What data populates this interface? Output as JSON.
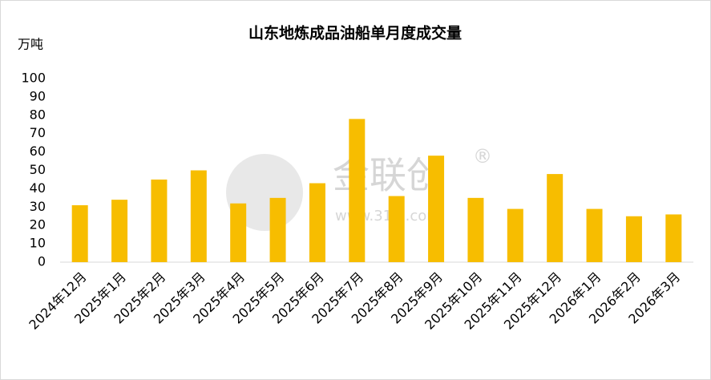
{
  "chart_data": {
    "type": "bar",
    "title": "山东地炼成品油船单月度成交量",
    "y_axis_label": "万吨",
    "categories": [
      "2024年12月",
      "2025年1月",
      "2025年2月",
      "2025年3月",
      "2025年4月",
      "2025年5月",
      "2025年6月",
      "2025年7月",
      "2025年8月",
      "2025年9月",
      "2025年10月",
      "2025年11月",
      "2025年12月",
      "2026年1月",
      "2026年2月",
      "2026年3月"
    ],
    "values": [
      31,
      34,
      45,
      50,
      32,
      35,
      43,
      78,
      36,
      58,
      35,
      29,
      48,
      29,
      25,
      26
    ],
    "color": "#f7bd00",
    "ylim": [
      0,
      100
    ],
    "yticks": [
      0,
      10,
      20,
      30,
      40,
      50,
      60,
      70,
      80,
      90,
      100
    ],
    "grid": false,
    "watermark": {
      "brand": "金联创",
      "url": "www.315i.com",
      "mark": "®"
    }
  }
}
